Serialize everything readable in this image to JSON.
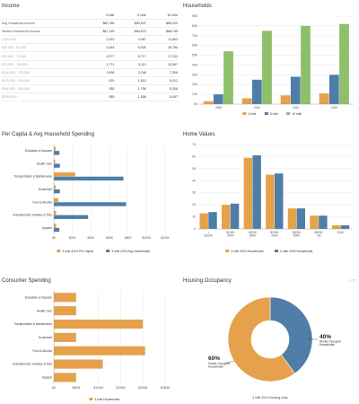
{
  "colors": {
    "orange": "#e5a14b",
    "blue": "#4e7ea7",
    "green": "#8fbf6a",
    "grid": "#e3e3e3",
    "axis": "#666"
  },
  "income": {
    "title": "Income",
    "headers": [
      "",
      "3 mile",
      "5 mile",
      "10 mile"
    ],
    "rows": [
      [
        "Avg Household Income",
        "$80,758",
        "$83,547",
        "$89,020"
      ],
      [
        "Median Household Income",
        "$67,199",
        "$64,570",
        "$66,745"
      ],
      [
        "< $25,000",
        "2,191",
        "4,067",
        "11,603"
      ],
      [
        "$25,000 - 50,000",
        "3,164",
        "5,931",
        "16,750"
      ],
      [
        "$50,000 - 75,000",
        "4,077",
        "6,717",
        "17,202"
      ],
      [
        "$75,000 - 100,000",
        "1,771",
        "3,113",
        "10,597"
      ],
      [
        "$100,000 - 125,000",
        "1,996",
        "3,245",
        "7,308"
      ],
      [
        "$125,000 - 150,000",
        "879",
        "1,513",
        "5,012"
      ],
      [
        "$150,000 - 200,000",
        "935",
        "1,756",
        "5,306"
      ],
      [
        "$200,000+",
        "955",
        "1,558",
        "5,047"
      ]
    ]
  },
  "tools": {
    "pin": "pin-icon",
    "expand": "expand-icon"
  },
  "chart_data": [
    {
      "id": "households",
      "type": "bar",
      "title": "Households",
      "categories": [
        "2000",
        "2010",
        "2024",
        "2029"
      ],
      "series": [
        {
          "name": "3 mile",
          "color": "#e5a14b",
          "values": [
            3000,
            6000,
            9000,
            11000
          ]
        },
        {
          "name": "5 mile",
          "color": "#4e7ea7",
          "values": [
            10000,
            25000,
            28000,
            30000
          ]
        },
        {
          "name": "10 mile",
          "color": "#8fbf6a",
          "values": [
            54000,
            75000,
            80000,
            82000
          ]
        }
      ],
      "yticks": [
        "0K",
        "10K",
        "20K",
        "30K",
        "40K",
        "50K",
        "60K",
        "70K",
        "80K",
        "90K"
      ],
      "ylim": [
        0,
        90000
      ],
      "legend": "bottom"
    },
    {
      "id": "spending",
      "type": "bar",
      "orientation": "horizontal",
      "title": "Per Capita & Avg Household Spending",
      "categories": [
        "Education & Daycare",
        "Health Care",
        "Transportation & Maintenance",
        "Household",
        "Food & Alcohol",
        "Entertainment, Hobbies & Pets",
        "Apparel"
      ],
      "series": [
        {
          "name": "3 mile 2024 Per Capita",
          "color": "#e5a14b",
          "values": [
            2000,
            1500,
            23000,
            2000,
            5000,
            2500,
            2500
          ]
        },
        {
          "name": "3 mile 2024 Avg Households",
          "color": "#4e7ea7",
          "values": [
            6000,
            6500,
            75000,
            6500,
            78000,
            37000,
            6000
          ]
        }
      ],
      "xticks": [
        "$0",
        "$20K",
        "$40K",
        "$60K",
        "$80K",
        "$100K",
        "$120K"
      ],
      "xlim": [
        0,
        120000
      ],
      "legend": "bottom"
    },
    {
      "id": "home_values",
      "type": "bar",
      "title": "Home Values",
      "categories": [
        "< $100K",
        "$100K 200K",
        "$200K 300K",
        "$300K 400K",
        "$400K 500K",
        "$500K 1M",
        "$1M+"
      ],
      "series": [
        {
          "name": "3 mile 2024 Households",
          "color": "#e5a14b",
          "values": [
            13,
            20,
            59,
            45,
            17,
            11,
            3
          ]
        },
        {
          "name": "3 mile 2029 Households",
          "color": "#4e7ea7",
          "values": [
            14,
            21,
            61,
            46,
            17,
            11,
            3
          ]
        }
      ],
      "yticks": [
        "0",
        "10",
        "20",
        "30",
        "40",
        "50",
        "60",
        "70"
      ],
      "ylim": [
        0,
        70
      ],
      "legend": "bottom"
    },
    {
      "id": "consumer",
      "type": "bar",
      "orientation": "horizontal",
      "title": "Consumer Spending",
      "categories": [
        "Education & Daycare",
        "Health Care",
        "Transportation & Maintenance",
        "Household",
        "Food & Alcohol",
        "Entertainment, Hobbies & Pets",
        "Apparel"
      ],
      "series": [
        {
          "name": "3 mile Households",
          "color": "#e5a14b",
          "values": [
            50000,
            50000,
            200000,
            50000,
            205000,
            110000,
            50000
          ]
        }
      ],
      "xticks": [
        "$0",
        "$50M",
        "$100M",
        "$150M",
        "$200M",
        "$250M"
      ],
      "xlim": [
        0,
        250000
      ],
      "legend": "bottom"
    },
    {
      "id": "occupancy",
      "type": "pie",
      "title": "Housing Occupancy",
      "slices": [
        {
          "label": "Renter Occupied Households",
          "percent_label": "40%",
          "value": 40,
          "color": "#4e7ea7"
        },
        {
          "label": "Owner Occupied Households",
          "percent_label": "60%",
          "value": 60,
          "color": "#e5a14b"
        }
      ],
      "caption": "3 mile 2024 Housing Units"
    }
  ]
}
